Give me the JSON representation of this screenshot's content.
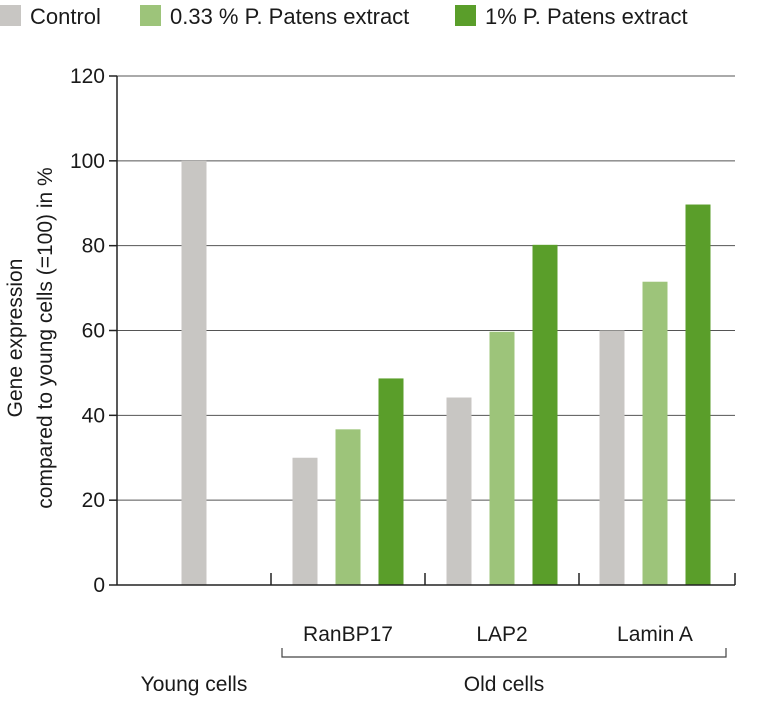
{
  "chart_data": {
    "type": "bar",
    "ylabel_lines": [
      "Gene expression",
      "compared to young cells (=100) in %"
    ],
    "ylim": [
      0,
      120
    ],
    "yticks": [
      0,
      20,
      40,
      60,
      80,
      100,
      120
    ],
    "grid": true,
    "legend_position": "top-left",
    "colors": {
      "Control": "#c8c6c3",
      "0.33 % P. Patens extract": "#9dc47a",
      "1% P. Patens extract": "#5a9e2a"
    },
    "series": [
      {
        "name": "Control",
        "color": "#c8c6c3"
      },
      {
        "name": "0.33 % P. Patens extract",
        "color": "#9dc47a"
      },
      {
        "name": "1% P. Patens extract",
        "color": "#5a9e2a"
      }
    ],
    "groups": [
      {
        "label": "",
        "group_label": "Young cells",
        "values": {
          "Control": 100
        }
      },
      {
        "label": "RanBP17",
        "group_label": "Old cells",
        "values": {
          "Control": 30,
          "0.33 % P. Patens extract": 36.7,
          "1% P. Patens extract": 48.7
        }
      },
      {
        "label": "LAP2",
        "group_label": "Old cells",
        "values": {
          "Control": 44.2,
          "0.33 % P. Patens extract": 59.7,
          "1% P. Patens extract": 80.2
        }
      },
      {
        "label": "Lamin A",
        "group_label": "Old cells",
        "values": {
          "Control": 60,
          "0.33 % P. Patens extract": 71.5,
          "1% P. Patens extract": 89.7
        }
      }
    ],
    "super_groups": [
      "Young cells",
      "Old cells"
    ]
  }
}
